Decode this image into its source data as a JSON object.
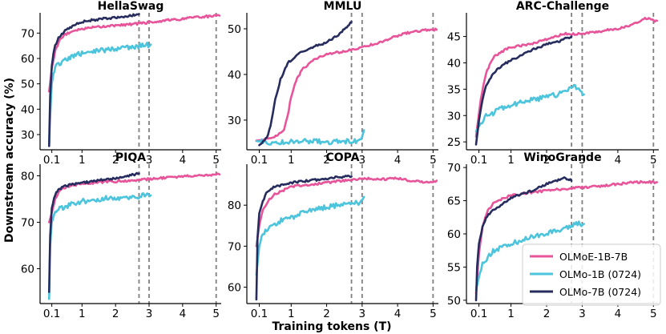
{
  "figure": {
    "ylabel": "Downstream accuracy (%)",
    "xlabel": "Training tokens (T)"
  },
  "legend": [
    {
      "name": "OLMoE-1B-7B",
      "color": "#e8549a"
    },
    {
      "name": "OLMo-1B (0724)",
      "color": "#4cc4dc"
    },
    {
      "name": "OLMo-7B (0724)",
      "color": "#262c5e"
    }
  ],
  "chart_data": [
    {
      "type": "line",
      "title": "HellaSwag",
      "xlim": [
        -0.25,
        5.15
      ],
      "ylim": [
        24,
        78
      ],
      "xticks": [
        0.1,
        1,
        2,
        3,
        4,
        5
      ],
      "xtick_labels": [
        "0.1",
        "1",
        "2",
        "3",
        "4",
        "5"
      ],
      "yticks": [
        30,
        40,
        50,
        60,
        70
      ],
      "vlines": [
        2.7,
        3.0,
        5.0
      ],
      "series": [
        {
          "name": "OLMoE-1B-7B",
          "x": [
            0.02,
            0.1,
            0.2,
            0.35,
            0.5,
            0.75,
            1.0,
            1.5,
            2.0,
            2.5,
            3.0,
            3.5,
            4.0,
            4.5,
            5.0,
            5.1
          ],
          "y": [
            47,
            56,
            63,
            67.5,
            69.5,
            71,
            71.8,
            72.5,
            73,
            73.5,
            74.2,
            75,
            75.6,
            76.3,
            76.8,
            76.9
          ]
        },
        {
          "name": "OLMo-1B (0724)",
          "x": [
            0.02,
            0.06,
            0.1,
            0.15,
            0.2,
            0.3,
            0.5,
            0.75,
            1.0,
            1.5,
            2.0,
            2.5,
            2.8,
            3.05
          ],
          "y": [
            26,
            40,
            50,
            54,
            56.5,
            58,
            59.5,
            61,
            62,
            63,
            64,
            64.6,
            65,
            65.5
          ]
        },
        {
          "name": "OLMo-7B (0724)",
          "x": [
            0.02,
            0.05,
            0.1,
            0.15,
            0.2,
            0.3,
            0.5,
            0.75,
            1.0,
            1.5,
            2.0,
            2.5,
            2.7
          ],
          "y": [
            25.5,
            45,
            57,
            62,
            65,
            68,
            71,
            73,
            74.5,
            75.5,
            76.2,
            77,
            77.5
          ]
        }
      ]
    },
    {
      "type": "line",
      "title": "MMLU",
      "xlim": [
        -0.25,
        5.15
      ],
      "ylim": [
        23.5,
        53.5
      ],
      "xticks": [
        0.1,
        1,
        2,
        3,
        4,
        5
      ],
      "xtick_labels": [
        "0.1",
        "1",
        "2",
        "3",
        "4",
        "5"
      ],
      "yticks": [
        30,
        40,
        50
      ],
      "vlines": [
        2.7,
        3.0,
        5.0
      ],
      "series": [
        {
          "name": "OLMoE-1B-7B",
          "x": [
            0.02,
            0.3,
            0.6,
            0.8,
            0.9,
            1.0,
            1.1,
            1.3,
            1.6,
            2.0,
            2.5,
            3.0,
            3.5,
            4.0,
            4.5,
            5.0,
            5.1
          ],
          "y": [
            25.5,
            25.8,
            26.5,
            28,
            31,
            35,
            38,
            41,
            43,
            44.5,
            45,
            46,
            47,
            48.5,
            49.5,
            49.8,
            49.8
          ]
        },
        {
          "name": "OLMo-1B (0724)",
          "x": [
            0.02,
            0.5,
            1.0,
            1.5,
            2.0,
            2.5,
            2.9,
            3.0,
            3.05
          ],
          "y": [
            25.4,
            25,
            25.3,
            25.4,
            25.2,
            25.3,
            25.5,
            26.5,
            27.8
          ]
        },
        {
          "name": "OLMo-7B (0724)",
          "x": [
            0.1,
            0.25,
            0.35,
            0.45,
            0.55,
            0.7,
            0.9,
            1.2,
            1.6,
            2.0,
            2.3,
            2.5,
            2.7
          ],
          "y": [
            24.5,
            25.5,
            26.8,
            30,
            34.5,
            39,
            42.5,
            44.5,
            46,
            47,
            48.5,
            50,
            51.5
          ]
        }
      ]
    },
    {
      "type": "line",
      "title": "ARC-Challenge",
      "xlim": [
        -0.25,
        5.15
      ],
      "ylim": [
        23.5,
        49.5
      ],
      "xticks": [
        0.1,
        1,
        2,
        3,
        4,
        5
      ],
      "xtick_labels": [
        "0.1",
        "1",
        "2",
        "3",
        "4",
        "5"
      ],
      "yticks": [
        25,
        30,
        35,
        40,
        45
      ],
      "vlines": [
        2.7,
        3.0,
        5.0
      ],
      "series": [
        {
          "name": "OLMoE-1B-7B",
          "x": [
            0.02,
            0.15,
            0.3,
            0.5,
            0.7,
            1.0,
            1.5,
            2.0,
            2.5,
            3.0,
            3.5,
            4.0,
            4.5,
            4.8,
            5.0,
            5.1
          ],
          "y": [
            26,
            33,
            38,
            41,
            42,
            43,
            43.5,
            44.5,
            45.5,
            45.5,
            46,
            46.5,
            47.5,
            48.5,
            48,
            48
          ]
        },
        {
          "name": "OLMo-1B (0724)",
          "x": [
            0.02,
            0.15,
            0.3,
            0.5,
            0.75,
            1.0,
            1.3,
            1.6,
            2.0,
            2.3,
            2.6,
            2.8,
            3.05
          ],
          "y": [
            27,
            28.5,
            30,
            30.5,
            31.5,
            32,
            32.5,
            33,
            33.5,
            34,
            35,
            35.5,
            34
          ]
        },
        {
          "name": "OLMo-7B (0724)",
          "x": [
            0.02,
            0.1,
            0.2,
            0.3,
            0.5,
            0.75,
            1.0,
            1.3,
            1.6,
            2.0,
            2.3,
            2.5,
            2.7
          ],
          "y": [
            24.5,
            29,
            33,
            35.5,
            38,
            39.5,
            40.5,
            41.5,
            42.5,
            43.5,
            44,
            44.5,
            45
          ]
        }
      ]
    },
    {
      "type": "line",
      "title": "PIQA",
      "xlim": [
        -0.25,
        5.15
      ],
      "ylim": [
        52.5,
        82.5
      ],
      "xticks": [
        0.1,
        1,
        2,
        3,
        4,
        5
      ],
      "xtick_labels": [
        "0.1",
        "1",
        "2",
        "3",
        "4",
        "5"
      ],
      "yticks": [
        60,
        70,
        80
      ],
      "vlines": [
        2.7,
        3.0,
        5.0
      ],
      "series": [
        {
          "name": "OLMoE-1B-7B",
          "x": [
            0.02,
            0.1,
            0.2,
            0.35,
            0.5,
            0.75,
            1.0,
            1.5,
            2.0,
            2.5,
            3.0,
            3.5,
            4.0,
            4.5,
            5.0,
            5.1
          ],
          "y": [
            70,
            72,
            75,
            77,
            77.5,
            78,
            78.3,
            78.6,
            78.8,
            79,
            79.3,
            79.6,
            79.9,
            80.1,
            80.3,
            80.3
          ]
        },
        {
          "name": "OLMo-1B (0724)",
          "x": [
            0.02,
            0.05,
            0.1,
            0.2,
            0.3,
            0.5,
            0.75,
            1.0,
            1.5,
            2.0,
            2.5,
            2.8,
            3.05
          ],
          "y": [
            53.5,
            65,
            70,
            72,
            72.8,
            73.3,
            74,
            74.5,
            75,
            75.3,
            75.5,
            75.7,
            75.8
          ]
        },
        {
          "name": "OLMo-7B (0724)",
          "x": [
            0.02,
            0.05,
            0.1,
            0.2,
            0.3,
            0.5,
            0.75,
            1.0,
            1.5,
            2.0,
            2.5,
            2.7
          ],
          "y": [
            55,
            67,
            73,
            76,
            77,
            77.8,
            78.2,
            78.5,
            79,
            79.5,
            80.2,
            80.5
          ]
        }
      ]
    },
    {
      "type": "line",
      "title": "COPA",
      "xlim": [
        -0.25,
        5.15
      ],
      "ylim": [
        56,
        90
      ],
      "xticks": [
        0.1,
        1,
        2,
        3,
        4,
        5
      ],
      "xtick_labels": [
        "0.1",
        "1",
        "2",
        "3",
        "4",
        "5"
      ],
      "yticks": [
        60,
        70,
        80
      ],
      "vlines": [
        2.7,
        3.0,
        5.0
      ],
      "series": [
        {
          "name": "OLMoE-1B-7B",
          "x": [
            0.02,
            0.1,
            0.2,
            0.35,
            0.5,
            0.75,
            1.0,
            1.5,
            2.0,
            2.5,
            3.0,
            3.5,
            4.0,
            4.5,
            5.0,
            5.1
          ],
          "y": [
            70,
            75,
            79,
            81,
            82.5,
            83.5,
            84.5,
            85,
            85.5,
            86,
            86.5,
            86.3,
            86.5,
            85.8,
            85.5,
            86
          ]
        },
        {
          "name": "OLMo-1B (0724)",
          "x": [
            0.02,
            0.1,
            0.2,
            0.35,
            0.5,
            0.75,
            1.0,
            1.3,
            1.6,
            2.0,
            2.3,
            2.6,
            2.9,
            3.05
          ],
          "y": [
            63,
            70,
            73,
            74,
            75,
            76.5,
            77,
            78,
            79,
            79.5,
            80,
            80.5,
            80.5,
            82
          ]
        },
        {
          "name": "OLMo-7B (0724)",
          "x": [
            0.02,
            0.05,
            0.1,
            0.2,
            0.3,
            0.5,
            0.75,
            1.0,
            1.5,
            2.0,
            2.5,
            2.7
          ],
          "y": [
            57,
            72,
            78,
            81,
            83,
            84.5,
            85,
            85.5,
            86,
            86.5,
            87,
            87
          ]
        }
      ]
    },
    {
      "type": "line",
      "title": "WinoGrande",
      "xlim": [
        -0.25,
        5.15
      ],
      "ylim": [
        49.5,
        70.5
      ],
      "xticks": [
        0.1,
        1,
        2,
        3,
        4,
        5
      ],
      "xtick_labels": [
        "0.1",
        "1",
        "2",
        "3",
        "4",
        "5"
      ],
      "yticks": [
        50,
        55,
        60,
        65,
        70
      ],
      "vlines": [
        2.7,
        3.0,
        5.0
      ],
      "series": [
        {
          "name": "OLMoE-1B-7B",
          "x": [
            0.02,
            0.1,
            0.2,
            0.35,
            0.5,
            0.75,
            1.0,
            1.5,
            2.0,
            2.5,
            3.0,
            3.5,
            4.0,
            4.5,
            5.0,
            5.1
          ],
          "y": [
            51,
            57,
            61,
            63.5,
            64.5,
            65.3,
            65.8,
            66.2,
            66.5,
            66.8,
            67,
            67.2,
            67.5,
            67.8,
            67.8,
            67.8
          ]
        },
        {
          "name": "OLMo-1B (0724)",
          "x": [
            0.02,
            0.1,
            0.2,
            0.35,
            0.5,
            0.75,
            1.0,
            1.3,
            1.6,
            2.0,
            2.3,
            2.6,
            2.8,
            3.05
          ],
          "y": [
            51.5,
            53.5,
            55.5,
            56.5,
            57.5,
            58,
            58.5,
            59,
            59.5,
            60,
            60.5,
            61,
            61.5,
            61.5
          ]
        },
        {
          "name": "OLMo-7B (0724)",
          "x": [
            0.02,
            0.05,
            0.1,
            0.2,
            0.3,
            0.5,
            0.75,
            1.0,
            1.3,
            1.6,
            2.0,
            2.3,
            2.5,
            2.7
          ],
          "y": [
            50,
            55,
            58.5,
            61,
            62.5,
            63.5,
            64.5,
            65.5,
            66,
            66.5,
            67.5,
            68,
            68.5,
            68
          ]
        }
      ]
    }
  ]
}
